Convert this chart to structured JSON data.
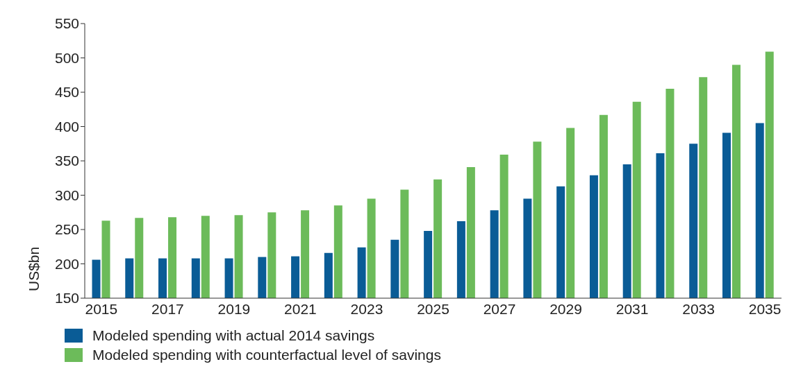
{
  "chart_data": {
    "type": "bar",
    "ylabel": "US$bn",
    "categories": [
      "2015",
      null,
      "2017",
      null,
      "2019",
      null,
      "2021",
      null,
      "2023",
      null,
      "2025",
      null,
      "2027",
      null,
      "2029",
      null,
      "2031",
      null,
      "2033",
      null,
      "2035"
    ],
    "series": [
      {
        "name": "Modeled spending with actual 2014 savings",
        "color": "#0a5c96",
        "values": [
          206,
          208,
          208,
          208,
          208,
          210,
          211,
          216,
          224,
          235,
          248,
          262,
          278,
          295,
          313,
          329,
          345,
          361,
          375,
          391,
          405
        ]
      },
      {
        "name": "Modeled spending with counterfactual level of savings",
        "color": "#6cbb5a",
        "values": [
          263,
          267,
          268,
          270,
          271,
          275,
          278,
          285,
          295,
          308,
          323,
          341,
          359,
          378,
          398,
          417,
          436,
          455,
          472,
          490,
          509
        ]
      }
    ],
    "ylim": [
      150,
      550
    ],
    "yticks": [
      150,
      200,
      250,
      300,
      350,
      400,
      450,
      500,
      550
    ],
    "grid": false,
    "legend": "bottom"
  }
}
